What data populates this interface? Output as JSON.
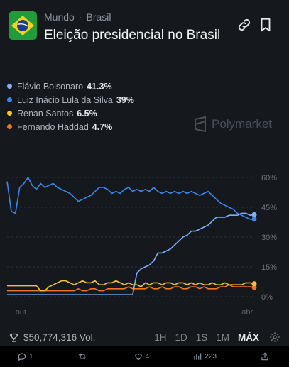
{
  "header": {
    "breadcrumb_1": "Mundo",
    "breadcrumb_sep": "·",
    "breadcrumb_2": "Brasil",
    "title": "Eleição presidencial no Brasil"
  },
  "legend": [
    {
      "name": "Flávio Bolsonaro",
      "value": "41.3%",
      "color": "#7fb0ff"
    },
    {
      "name": "Luiz Inácio Lula da Silva",
      "value": "39%",
      "color": "#3b86e8"
    },
    {
      "name": "Renan Santos",
      "value": "6.5%",
      "color": "#f2c425"
    },
    {
      "name": "Fernando Haddad",
      "value": "4.7%",
      "color": "#f0731f"
    }
  ],
  "watermark": "Polymarket",
  "chart_data": {
    "type": "line",
    "x_ticks": [
      "out",
      "abr"
    ],
    "y_ticks": [
      "60%",
      "45%",
      "30%",
      "15%",
      "0%"
    ],
    "ylim": [
      0,
      60
    ],
    "x_points": 60,
    "series": [
      {
        "name": "Flávio Bolsonaro",
        "color": "#7fb0ff",
        "values": [
          1,
          1,
          1,
          1,
          1,
          1,
          1,
          1,
          1,
          1,
          1,
          1,
          1,
          1,
          1,
          1,
          1,
          1,
          1,
          1,
          1,
          1,
          1,
          1,
          1,
          1,
          1,
          1,
          1,
          1,
          1,
          12,
          14,
          15,
          16,
          18,
          22,
          22,
          23,
          24,
          26,
          28,
          30,
          31,
          33,
          33,
          34,
          35,
          36,
          38,
          40,
          40,
          40,
          41,
          41,
          41,
          42,
          42,
          41,
          41.3
        ]
      },
      {
        "name": "Luiz Inácio Lula da Silva",
        "color": "#3b86e8",
        "values": [
          58,
          43,
          42,
          55,
          57,
          60,
          56,
          54,
          57,
          55,
          56,
          57,
          55,
          54,
          53,
          52,
          50,
          48,
          49,
          50,
          51,
          53,
          55,
          55,
          54,
          52,
          53,
          52,
          54,
          55,
          53,
          54,
          53,
          54,
          53,
          55,
          53,
          52,
          53,
          52,
          53,
          52,
          53,
          52,
          53,
          52,
          51,
          52,
          53,
          51,
          49,
          47,
          46,
          45,
          44,
          42,
          41,
          40,
          39,
          39
        ]
      },
      {
        "name": "Renan Santos",
        "color": "#f2c425",
        "values": [
          5.5,
          5.5,
          5.5,
          5.5,
          5.5,
          5.5,
          5.5,
          5.5,
          3,
          3,
          5,
          6,
          7,
          8,
          8,
          7,
          6,
          7,
          8,
          7,
          7,
          8,
          6,
          6,
          7,
          7,
          8,
          7,
          6,
          7,
          6,
          6,
          5,
          7,
          6,
          7,
          7,
          6,
          7,
          7,
          6,
          7,
          7,
          6,
          7,
          6,
          7,
          6,
          6,
          7,
          6,
          6,
          7,
          6,
          6,
          6,
          6,
          7,
          7,
          6.5
        ]
      },
      {
        "name": "Fernando Haddad",
        "color": "#f0731f",
        "values": [
          3,
          3,
          3,
          3,
          3,
          3,
          3,
          3,
          3,
          3,
          3,
          3,
          3,
          3,
          3,
          3,
          3,
          4,
          3,
          3,
          4,
          4,
          3,
          3,
          4,
          4,
          4,
          4,
          4,
          5,
          4,
          4,
          4,
          4,
          5,
          4,
          4,
          5,
          4,
          4,
          5,
          5,
          4,
          4,
          5,
          5,
          4,
          5,
          4,
          4,
          4,
          5,
          5,
          6,
          5,
          5,
          5,
          5,
          5,
          4.7
        ]
      }
    ]
  },
  "footer": {
    "volume": "$50,774,316 Vol.",
    "ranges": [
      "1H",
      "1D",
      "1S",
      "1M",
      "MÁX"
    ],
    "active_range": "MÁX"
  },
  "actions": {
    "reply": "1",
    "retweet": "",
    "like": "4",
    "views": "223"
  }
}
